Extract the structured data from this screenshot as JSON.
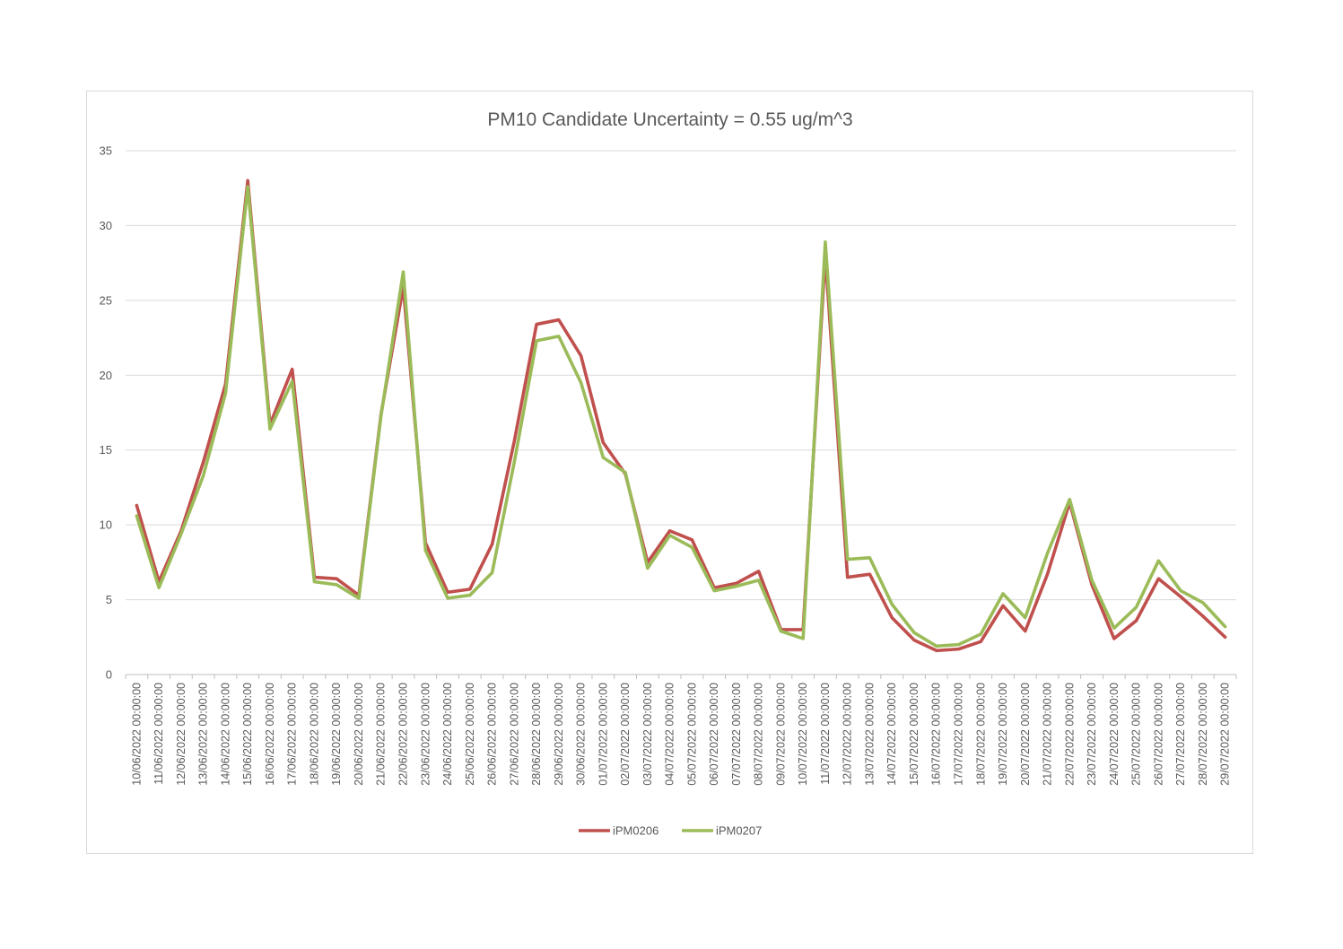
{
  "chart_data": {
    "type": "line",
    "title": "PM10 Candidate Uncertainty = 0.55 ug/m^3",
    "xlabel": "",
    "ylabel": "",
    "ylim": [
      0,
      35
    ],
    "yticks": [
      "0",
      "5",
      "10",
      "15",
      "20",
      "25",
      "30",
      "35"
    ],
    "grid": true,
    "legend_position": "bottom",
    "categories": [
      "10/06/2022 00:00:00",
      "11/06/2022 00:00:00",
      "12/06/2022 00:00:00",
      "13/06/2022 00:00:00",
      "14/06/2022 00:00:00",
      "15/06/2022 00:00:00",
      "16/06/2022 00:00:00",
      "17/06/2022 00:00:00",
      "18/06/2022 00:00:00",
      "19/06/2022 00:00:00",
      "20/06/2022 00:00:00",
      "21/06/2022 00:00:00",
      "22/06/2022 00:00:00",
      "23/06/2022 00:00:00",
      "24/06/2022 00:00:00",
      "25/06/2022 00:00:00",
      "26/06/2022 00:00:00",
      "27/06/2022 00:00:00",
      "28/06/2022 00:00:00",
      "29/06/2022 00:00:00",
      "30/06/2022 00:00:00",
      "01/07/2022 00:00:00",
      "02/07/2022 00:00:00",
      "03/07/2022 00:00:00",
      "04/07/2022 00:00:00",
      "05/07/2022 00:00:00",
      "06/07/2022 00:00:00",
      "07/07/2022 00:00:00",
      "08/07/2022 00:00:00",
      "09/07/2022 00:00:00",
      "10/07/2022 00:00:00",
      "11/07/2022 00:00:00",
      "12/07/2022 00:00:00",
      "13/07/2022 00:00:00",
      "14/07/2022 00:00:00",
      "15/07/2022 00:00:00",
      "16/07/2022 00:00:00",
      "17/07/2022 00:00:00",
      "18/07/2022 00:00:00",
      "19/07/2022 00:00:00",
      "20/07/2022 00:00:00",
      "21/07/2022 00:00:00",
      "22/07/2022 00:00:00",
      "23/07/2022 00:00:00",
      "24/07/2022 00:00:00",
      "25/07/2022 00:00:00",
      "26/07/2022 00:00:00",
      "27/07/2022 00:00:00",
      "28/07/2022 00:00:00",
      "29/07/2022 00:00:00"
    ],
    "series": [
      {
        "name": "iPM0206",
        "color": "#c0504d",
        "values": [
          11.3,
          6.2,
          9.6,
          14.2,
          19.4,
          33.0,
          16.7,
          20.4,
          6.5,
          6.4,
          5.3,
          17.4,
          25.9,
          8.8,
          5.5,
          5.7,
          8.7,
          15.6,
          23.4,
          23.7,
          21.3,
          15.5,
          13.4,
          7.5,
          9.6,
          9.0,
          5.8,
          6.1,
          6.9,
          3.0,
          3.0,
          28.0,
          6.5,
          6.7,
          3.8,
          2.3,
          1.6,
          1.7,
          2.2,
          4.6,
          2.9,
          6.7,
          11.5,
          6.0,
          2.4,
          3.6,
          6.4,
          5.2,
          3.9,
          2.5
        ]
      },
      {
        "name": "iPM0207",
        "color": "#9bbb59",
        "values": [
          10.6,
          5.8,
          9.4,
          13.3,
          18.8,
          32.6,
          16.4,
          19.6,
          6.2,
          6.0,
          5.1,
          17.3,
          26.9,
          8.3,
          5.1,
          5.3,
          6.8,
          14.2,
          22.3,
          22.6,
          19.5,
          14.5,
          13.5,
          7.1,
          9.3,
          8.5,
          5.6,
          5.9,
          6.3,
          2.9,
          2.4,
          28.9,
          7.7,
          7.8,
          4.7,
          2.8,
          1.9,
          2.0,
          2.7,
          5.4,
          3.8,
          8.1,
          11.7,
          6.3,
          3.1,
          4.5,
          7.6,
          5.6,
          4.8,
          3.2
        ]
      }
    ]
  }
}
